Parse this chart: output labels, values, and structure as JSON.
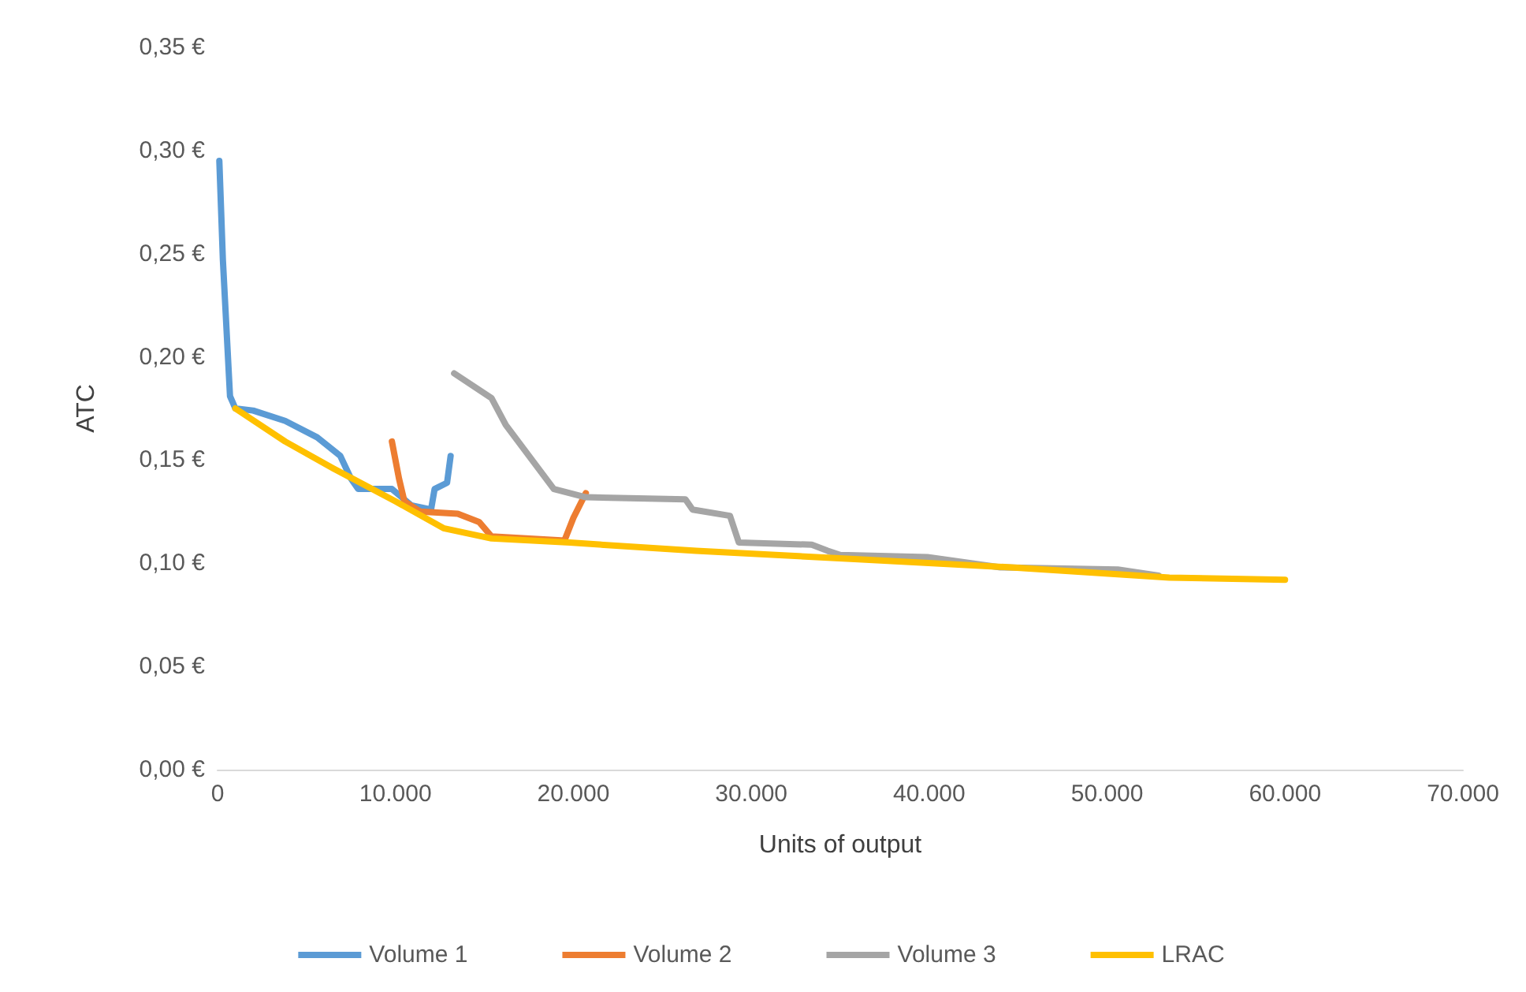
{
  "chart_data": {
    "type": "line",
    "xlabel": "Units of output",
    "ylabel": "ATC",
    "xlim": [
      0,
      70000
    ],
    "xticks": [
      {
        "value": 0,
        "label": "0"
      },
      {
        "value": 10000,
        "label": "10.000"
      },
      {
        "value": 20000,
        "label": "20.000"
      },
      {
        "value": 30000,
        "label": "30.000"
      },
      {
        "value": 40000,
        "label": "40.000"
      },
      {
        "value": 50000,
        "label": "50.000"
      },
      {
        "value": 60000,
        "label": "60.000"
      },
      {
        "value": 70000,
        "label": "70.000"
      }
    ],
    "ylim": [
      0,
      0.35
    ],
    "yticks": [
      {
        "value": 0,
        "label": "0,00 €"
      },
      {
        "value": 0.05,
        "label": "0,05 €"
      },
      {
        "value": 0.1,
        "label": "0,10 €"
      },
      {
        "value": 0.15,
        "label": "0,15 €"
      },
      {
        "value": 0.2,
        "label": "0,20 €"
      },
      {
        "value": 0.25,
        "label": "0,25 €"
      },
      {
        "value": 0.3,
        "label": "0,30 €"
      },
      {
        "value": 0.35,
        "label": "0,35 €"
      }
    ],
    "grid": false,
    "legend": "bottom",
    "marker": "none",
    "line_style": "solid",
    "series": [
      {
        "name": "Volume 1",
        "color": "#5b9bd5",
        "x": [
          100,
          300,
          700,
          1000,
          2000,
          3800,
          5600,
          6900,
          7500,
          7900,
          9800,
          10900,
          12000,
          12200,
          12900,
          13100
        ],
        "values": [
          0.295,
          0.247,
          0.181,
          0.175,
          0.174,
          0.169,
          0.161,
          0.152,
          0.141,
          0.136,
          0.136,
          0.128,
          0.126,
          0.136,
          0.139,
          0.152
        ]
      },
      {
        "name": "Volume 2",
        "color": "#ed7d31",
        "x": [
          9800,
          10200,
          10500,
          11400,
          13500,
          14700,
          15400,
          19500,
          20000,
          20700
        ],
        "values": [
          0.159,
          0.141,
          0.13,
          0.125,
          0.124,
          0.12,
          0.113,
          0.111,
          0.122,
          0.134
        ]
      },
      {
        "name": "Volume 3",
        "color": "#a5a5a5",
        "x": [
          13300,
          15400,
          16200,
          18900,
          20700,
          26300,
          26700,
          28800,
          29300,
          33400,
          34300,
          35000,
          39900,
          44000,
          50600,
          52900
        ],
        "values": [
          0.192,
          0.18,
          0.167,
          0.136,
          0.132,
          0.131,
          0.126,
          0.123,
          0.11,
          0.109,
          0.106,
          0.104,
          0.103,
          0.098,
          0.097,
          0.094
        ]
      },
      {
        "name": "LRAC",
        "color": "#ffc000",
        "x": [
          1000,
          3800,
          6500,
          10000,
          12700,
          15400,
          19800,
          26900,
          35800,
          44600,
          53500,
          60000
        ],
        "values": [
          0.175,
          0.159,
          0.146,
          0.13,
          0.117,
          0.112,
          0.11,
          0.106,
          0.102,
          0.098,
          0.093,
          0.092
        ]
      }
    ]
  }
}
